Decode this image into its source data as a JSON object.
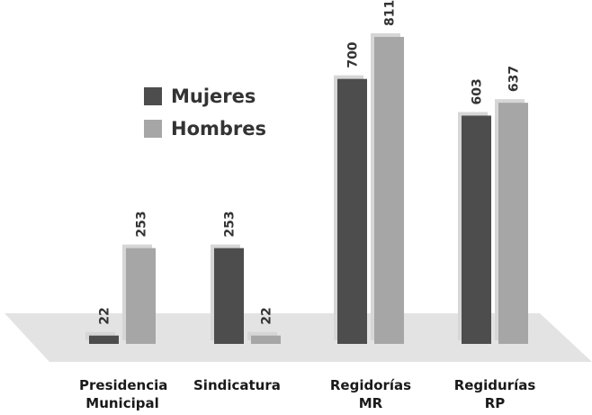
{
  "chart_data": {
    "type": "bar",
    "categories": [
      "Presidencia Municipal",
      "Sindicatura",
      "Regidorías MR",
      "Regidurías RP"
    ],
    "series": [
      {
        "name": "Mujeres",
        "color": "#4d4d4d",
        "values": [
          22,
          253,
          700,
          603
        ]
      },
      {
        "name": "Hombres",
        "color": "#a6a6a6",
        "values": [
          253,
          22,
          811,
          637
        ]
      }
    ]
  }
}
